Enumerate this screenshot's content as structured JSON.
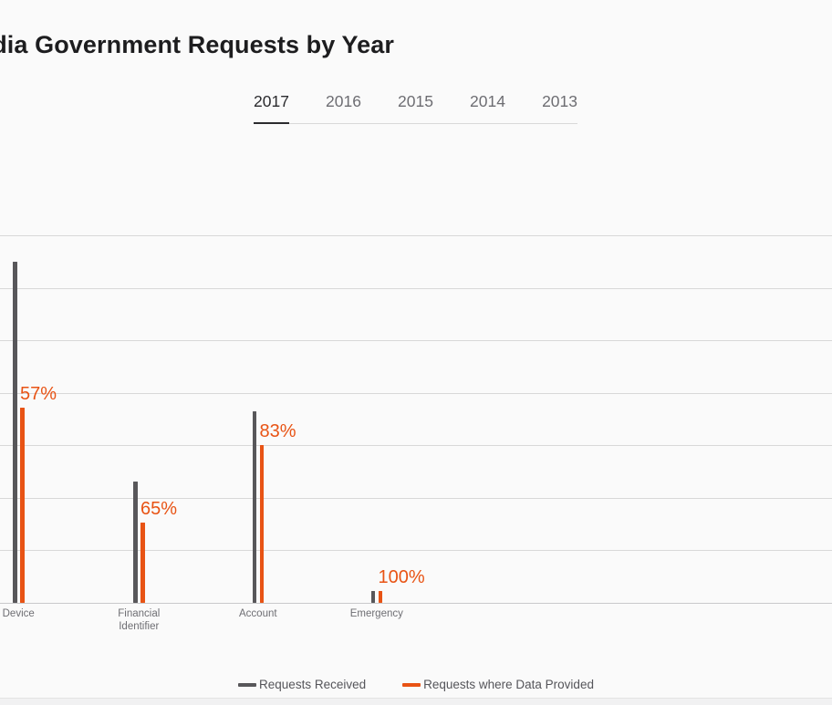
{
  "page": {
    "title": "India Government Requests by Year",
    "background": "#fafafa"
  },
  "tabs": {
    "items": [
      {
        "label": "2017",
        "active": true
      },
      {
        "label": "2016",
        "active": false
      },
      {
        "label": "2015",
        "active": false
      },
      {
        "label": "2014",
        "active": false
      },
      {
        "label": "2013",
        "active": false
      }
    ]
  },
  "chart_data": {
    "type": "bar",
    "title": "India Government Requests by Year",
    "selected_year": "2017",
    "categories": [
      "Device",
      "Financial\nIdentifier",
      "Account",
      "Emergency"
    ],
    "series": [
      {
        "name": "Requests Received",
        "color": "#58575a",
        "values_pct_of_plot_height": [
          92.8,
          32.9,
          52.0,
          3.2
        ]
      },
      {
        "name": "Requests where Data Provided",
        "color": "#e85314",
        "values_pct_of_plot_height": [
          53.0,
          21.8,
          42.9,
          3.2
        ]
      }
    ],
    "bar_labels": [
      "57%",
      "65%",
      "83%",
      "100%"
    ],
    "bar_labels_meaning": "percent of requests where data provided",
    "xlabel": "",
    "ylabel": "",
    "y_axis_tick_labels_visible": false,
    "gridline_count": 8,
    "grid": true,
    "legend_position": "bottom"
  },
  "legend": {
    "items": [
      {
        "label": "Requests Received",
        "color": "#58575a"
      },
      {
        "label": "Requests where Data Provided",
        "color": "#e85314"
      }
    ]
  }
}
